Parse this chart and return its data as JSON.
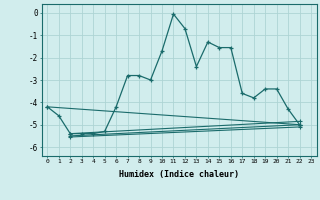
{
  "xlabel": "Humidex (Indice chaleur)",
  "background_color": "#d1eded",
  "grid_color": "#aed4d4",
  "line_color": "#1a6b6b",
  "xlim": [
    -0.5,
    23.5
  ],
  "ylim": [
    -6.4,
    0.4
  ],
  "xticks": [
    0,
    1,
    2,
    3,
    4,
    5,
    6,
    7,
    8,
    9,
    10,
    11,
    12,
    13,
    14,
    15,
    16,
    17,
    18,
    19,
    20,
    21,
    22,
    23
  ],
  "yticks": [
    0,
    -1,
    -2,
    -3,
    -4,
    -5,
    -6
  ],
  "series": [
    [
      0,
      -4.2
    ],
    [
      1,
      -4.6
    ],
    [
      2,
      -5.4
    ],
    [
      3,
      -5.4
    ],
    [
      4,
      -5.4
    ],
    [
      5,
      -5.3
    ],
    [
      6,
      -4.2
    ],
    [
      7,
      -2.8
    ],
    [
      8,
      -2.8
    ],
    [
      9,
      -3.0
    ],
    [
      10,
      -1.7
    ],
    [
      11,
      -0.05
    ],
    [
      12,
      -0.7
    ],
    [
      13,
      -2.4
    ],
    [
      14,
      -1.3
    ],
    [
      15,
      -1.55
    ],
    [
      16,
      -1.55
    ],
    [
      17,
      -3.6
    ],
    [
      18,
      -3.8
    ],
    [
      19,
      -3.4
    ],
    [
      20,
      -3.4
    ],
    [
      21,
      -4.3
    ],
    [
      22,
      -5.0
    ]
  ],
  "flat_series": [
    [
      [
        0,
        -4.2
      ],
      [
        22,
        -5.0
      ]
    ],
    [
      [
        2,
        -5.4
      ],
      [
        22,
        -4.85
      ]
    ],
    [
      [
        2,
        -5.5
      ],
      [
        22,
        -5.0
      ]
    ],
    [
      [
        2,
        -5.55
      ],
      [
        22,
        -5.1
      ]
    ]
  ]
}
